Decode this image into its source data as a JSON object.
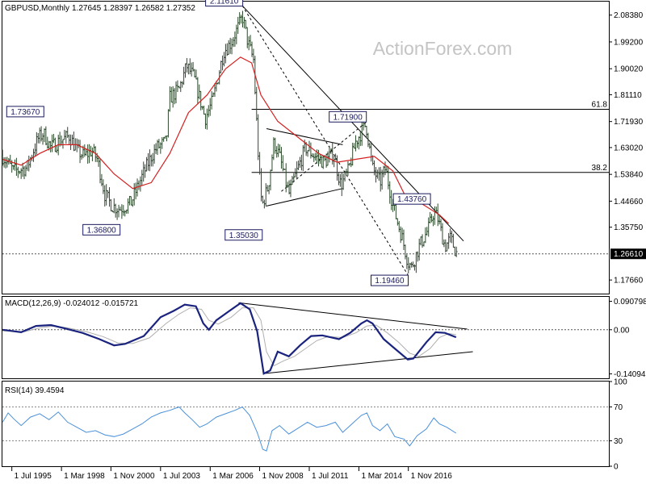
{
  "chart_data": [
    {
      "type": "candlestick",
      "symbol_header": "GBPUSD,Monthly",
      "ohlc_header": "1.27645 1.28397 1.26582 1.27352",
      "watermark": "ActionForex.com",
      "ylim": [
        1.13,
        2.13
      ],
      "y_ticks": [
        "2.08380",
        "1.99200",
        "1.90020",
        "1.81110",
        "1.71930",
        "1.63020",
        "1.53840",
        "1.44660",
        "1.35750",
        "1.17660"
      ],
      "current_price": "1.26610",
      "current_price_value": 1.2661,
      "x_ticks": [
        {
          "label": "1 Jul 1995",
          "t": 1995.5
        },
        {
          "label": "1 Mar 1998",
          "t": 1998.17
        },
        {
          "label": "1 Nov 2000",
          "t": 2000.83
        },
        {
          "label": "1 Jul 2003",
          "t": 2003.5
        },
        {
          "label": "1 Mar 2006",
          "t": 2006.17
        },
        {
          "label": "1 Nov 2008",
          "t": 2008.83
        },
        {
          "label": "1 Jul 2011",
          "t": 2011.5
        },
        {
          "label": "1 Mar 2014",
          "t": 2014.17
        },
        {
          "label": "1 Nov 2016",
          "t": 2016.83
        }
      ],
      "price_path": [
        [
          1995.0,
          1.6
        ],
        [
          1995.6,
          1.55
        ],
        [
          1996.3,
          1.56
        ],
        [
          1996.9,
          1.66
        ],
        [
          1997.2,
          1.68
        ],
        [
          1997.6,
          1.63
        ],
        [
          1998.0,
          1.65
        ],
        [
          1998.6,
          1.67
        ],
        [
          1999.0,
          1.62
        ],
        [
          1999.4,
          1.6
        ],
        [
          1999.8,
          1.62
        ],
        [
          2000.1,
          1.59
        ],
        [
          2000.5,
          1.47
        ],
        [
          2000.9,
          1.43
        ],
        [
          2001.3,
          1.42
        ],
        [
          2001.9,
          1.44
        ],
        [
          2002.5,
          1.53
        ],
        [
          2003.0,
          1.6
        ],
        [
          2003.3,
          1.63
        ],
        [
          2003.8,
          1.65
        ],
        [
          2004.0,
          1.8
        ],
        [
          2004.5,
          1.83
        ],
        [
          2004.9,
          1.91
        ],
        [
          2005.3,
          1.87
        ],
        [
          2005.9,
          1.73
        ],
        [
          2006.3,
          1.79
        ],
        [
          2006.9,
          1.96
        ],
        [
          2007.3,
          1.99
        ],
        [
          2007.8,
          2.06
        ],
        [
          2007.9,
          2.08
        ],
        [
          2008.2,
          1.99
        ],
        [
          2008.5,
          1.93
        ],
        [
          2008.8,
          1.55
        ],
        [
          2008.95,
          1.43
        ],
        [
          2009.3,
          1.5
        ],
        [
          2009.6,
          1.65
        ],
        [
          2009.9,
          1.6
        ],
        [
          2010.4,
          1.47
        ],
        [
          2010.9,
          1.56
        ],
        [
          2011.3,
          1.63
        ],
        [
          2011.8,
          1.6
        ],
        [
          2012.3,
          1.58
        ],
        [
          2012.8,
          1.61
        ],
        [
          2013.2,
          1.5
        ],
        [
          2013.6,
          1.55
        ],
        [
          2014.0,
          1.65
        ],
        [
          2014.55,
          1.71
        ],
        [
          2014.9,
          1.56
        ],
        [
          2015.3,
          1.51
        ],
        [
          2015.6,
          1.56
        ],
        [
          2016.0,
          1.43
        ],
        [
          2016.5,
          1.32
        ],
        [
          2016.8,
          1.24
        ],
        [
          2017.0,
          1.22
        ],
        [
          2017.4,
          1.29
        ],
        [
          2017.9,
          1.35
        ],
        [
          2018.2,
          1.41
        ],
        [
          2018.4,
          1.39
        ],
        [
          2018.8,
          1.29
        ],
        [
          2019.1,
          1.32
        ],
        [
          2019.4,
          1.27
        ]
      ],
      "sma_path": [
        [
          1995.0,
          1.59
        ],
        [
          1996.0,
          1.57
        ],
        [
          1997.0,
          1.61
        ],
        [
          1998.0,
          1.64
        ],
        [
          1999.0,
          1.64
        ],
        [
          2000.0,
          1.61
        ],
        [
          2001.0,
          1.54
        ],
        [
          2002.0,
          1.49
        ],
        [
          2003.0,
          1.51
        ],
        [
          2004.0,
          1.61
        ],
        [
          2005.0,
          1.75
        ],
        [
          2006.0,
          1.81
        ],
        [
          2007.0,
          1.9
        ],
        [
          2007.8,
          1.94
        ],
        [
          2008.4,
          1.92
        ],
        [
          2008.9,
          1.81
        ],
        [
          2009.8,
          1.72
        ],
        [
          2011.0,
          1.66
        ],
        [
          2012.0,
          1.61
        ],
        [
          2013.0,
          1.58
        ],
        [
          2014.0,
          1.59
        ],
        [
          2015.0,
          1.6
        ],
        [
          2016.0,
          1.55
        ],
        [
          2016.7,
          1.46
        ],
        [
          2017.5,
          1.44
        ],
        [
          2018.5,
          1.4
        ],
        [
          2019.0,
          1.37
        ]
      ],
      "trendlines": [
        {
          "from": [
            2007.9,
            2.1161
          ],
          "to": [
            2019.8,
            1.31
          ],
          "style": "solid"
        },
        {
          "from": [
            2007.9,
            2.1161
          ],
          "to": [
            2016.8,
            1.1946
          ],
          "style": "dashed"
        },
        {
          "from": [
            2010.0,
            1.48
          ],
          "to": [
            2014.6,
            1.719
          ],
          "style": "dashed"
        },
        {
          "from": [
            2009.2,
            1.695
          ],
          "to": [
            2013.3,
            1.64
          ],
          "style": "solid"
        },
        {
          "from": [
            2009.2,
            1.43
          ],
          "to": [
            2013.3,
            1.49
          ],
          "style": "solid"
        }
      ],
      "fib_levels": [
        {
          "label": "61.8",
          "value": 1.7612,
          "from": 2008.4
        },
        {
          "label": "38.2",
          "value": 1.545,
          "from": 2008.4
        }
      ],
      "price_labels": [
        {
          "text": "2.11610",
          "t": 2007.9,
          "price": 2.1161,
          "side": "left",
          "vpos": "top"
        },
        {
          "text": "1.73670",
          "t": 1997.2,
          "price": 1.7367,
          "side": "left",
          "vpos": "top"
        },
        {
          "text": "1.36800",
          "t": 2001.3,
          "price": 1.368,
          "side": "left",
          "vpos": "bottom"
        },
        {
          "text": "1.35030",
          "t": 2008.95,
          "price": 1.3503,
          "side": "left",
          "vpos": "bottom"
        },
        {
          "text": "1.71900",
          "t": 2014.55,
          "price": 1.719,
          "side": "left",
          "vpos": "top"
        },
        {
          "text": "1.43760",
          "t": 2016.0,
          "price": 1.4376,
          "side": "right",
          "vpos": "top"
        },
        {
          "text": "1.19460",
          "t": 2016.8,
          "price": 1.1946,
          "side": "left",
          "vpos": "bottom"
        }
      ]
    },
    {
      "type": "line",
      "title": "MACD(12,26,9) -0.024012 -0.015721",
      "ylim": [
        -0.155,
        0.105
      ],
      "y_ticks": [
        "0.090798",
        "0.00",
        "-0.14094"
      ],
      "zero_label": "0.00",
      "series": [
        {
          "values": [
            [
              1995.0,
              0.0
            ],
            [
              1996.0,
              -0.008
            ],
            [
              1996.8,
              0.012
            ],
            [
              1997.6,
              0.015
            ],
            [
              1998.3,
              0.005
            ],
            [
              1999.3,
              -0.01
            ],
            [
              2000.2,
              -0.03
            ],
            [
              2001.0,
              -0.05
            ],
            [
              2001.6,
              -0.045
            ],
            [
              2002.6,
              -0.02
            ],
            [
              2003.5,
              0.04
            ],
            [
              2004.2,
              0.06
            ],
            [
              2004.8,
              0.08
            ],
            [
              2005.4,
              0.075
            ],
            [
              2005.8,
              0.02
            ],
            [
              2006.1,
              0.0
            ],
            [
              2006.5,
              0.03
            ],
            [
              2007.2,
              0.06
            ],
            [
              2007.8,
              0.085
            ],
            [
              2008.3,
              0.065
            ],
            [
              2008.7,
              -0.005
            ],
            [
              2009.05,
              -0.14
            ],
            [
              2009.4,
              -0.13
            ],
            [
              2009.8,
              -0.07
            ],
            [
              2010.4,
              -0.085
            ],
            [
              2011.0,
              -0.05
            ],
            [
              2011.6,
              -0.02
            ],
            [
              2012.2,
              -0.018
            ],
            [
              2013.1,
              -0.03
            ],
            [
              2013.7,
              -0.01
            ],
            [
              2014.3,
              0.02
            ],
            [
              2014.6,
              0.03
            ],
            [
              2014.9,
              0.02
            ],
            [
              2015.5,
              -0.03
            ],
            [
              2016.1,
              -0.06
            ],
            [
              2016.8,
              -0.095
            ],
            [
              2017.1,
              -0.092
            ],
            [
              2017.8,
              -0.04
            ],
            [
              2018.3,
              -0.008
            ],
            [
              2018.8,
              -0.01
            ],
            [
              2019.4,
              -0.024
            ]
          ]
        },
        {
          "values": [
            [
              1995.0,
              -0.004
            ],
            [
              1996.2,
              -0.006
            ],
            [
              1997.0,
              0.006
            ],
            [
              1997.8,
              0.012
            ],
            [
              1998.5,
              0.006
            ],
            [
              1999.5,
              -0.006
            ],
            [
              2000.4,
              -0.022
            ],
            [
              2001.2,
              -0.042
            ],
            [
              2002.0,
              -0.044
            ],
            [
              2002.9,
              -0.026
            ],
            [
              2003.8,
              0.02
            ],
            [
              2004.5,
              0.05
            ],
            [
              2005.1,
              0.07
            ],
            [
              2005.7,
              0.065
            ],
            [
              2006.1,
              0.03
            ],
            [
              2006.6,
              0.018
            ],
            [
              2007.3,
              0.04
            ],
            [
              2007.9,
              0.07
            ],
            [
              2008.5,
              0.07
            ],
            [
              2008.9,
              0.03
            ],
            [
              2009.2,
              -0.07
            ],
            [
              2009.6,
              -0.115
            ],
            [
              2010.1,
              -0.1
            ],
            [
              2010.7,
              -0.085
            ],
            [
              2011.3,
              -0.06
            ],
            [
              2011.9,
              -0.035
            ],
            [
              2012.5,
              -0.022
            ],
            [
              2013.3,
              -0.025
            ],
            [
              2014.0,
              -0.01
            ],
            [
              2014.6,
              0.012
            ],
            [
              2015.1,
              0.015
            ],
            [
              2015.7,
              -0.01
            ],
            [
              2016.3,
              -0.04
            ],
            [
              2016.9,
              -0.075
            ],
            [
              2017.4,
              -0.085
            ],
            [
              2018.0,
              -0.06
            ],
            [
              2018.5,
              -0.025
            ],
            [
              2019.0,
              -0.012
            ],
            [
              2019.4,
              -0.016
            ]
          ]
        }
      ],
      "trendlines": [
        {
          "from": [
            2007.7,
            0.086
          ],
          "to": [
            2020.0,
            0.002
          ]
        },
        {
          "from": [
            2009.05,
            -0.14
          ],
          "to": [
            2020.3,
            -0.07
          ]
        }
      ]
    },
    {
      "type": "line",
      "title": "RSI(14) 39.4594",
      "ylim": [
        0,
        100
      ],
      "y_ticks": [
        "100",
        "70",
        "30",
        "0"
      ],
      "levels": [
        70,
        30
      ],
      "series": [
        {
          "values": [
            [
              1995.0,
              52
            ],
            [
              1995.3,
              63
            ],
            [
              1995.6,
              56
            ],
            [
              1996.0,
              48
            ],
            [
              1996.5,
              58
            ],
            [
              1997.0,
              62
            ],
            [
              1997.5,
              55
            ],
            [
              1998.0,
              64
            ],
            [
              1998.5,
              52
            ],
            [
              1999.0,
              46
            ],
            [
              1999.5,
              40
            ],
            [
              2000.0,
              42
            ],
            [
              2000.5,
              37
            ],
            [
              2001.0,
              35
            ],
            [
              2001.5,
              38
            ],
            [
              2002.0,
              44
            ],
            [
              2002.5,
              50
            ],
            [
              2003.0,
              58
            ],
            [
              2003.5,
              63
            ],
            [
              2004.0,
              66
            ],
            [
              2004.5,
              70
            ],
            [
              2004.8,
              63
            ],
            [
              2005.2,
              55
            ],
            [
              2005.6,
              46
            ],
            [
              2006.0,
              50
            ],
            [
              2006.5,
              58
            ],
            [
              2007.0,
              62
            ],
            [
              2007.5,
              66
            ],
            [
              2007.9,
              70
            ],
            [
              2008.3,
              60
            ],
            [
              2008.7,
              40
            ],
            [
              2009.0,
              20
            ],
            [
              2009.2,
              18
            ],
            [
              2009.5,
              42
            ],
            [
              2009.9,
              48
            ],
            [
              2010.4,
              38
            ],
            [
              2010.9,
              45
            ],
            [
              2011.4,
              52
            ],
            [
              2011.9,
              46
            ],
            [
              2012.4,
              48
            ],
            [
              2012.9,
              52
            ],
            [
              2013.3,
              40
            ],
            [
              2013.8,
              50
            ],
            [
              2014.3,
              60
            ],
            [
              2014.6,
              63
            ],
            [
              2014.9,
              48
            ],
            [
              2015.3,
              42
            ],
            [
              2015.7,
              50
            ],
            [
              2016.1,
              35
            ],
            [
              2016.6,
              32
            ],
            [
              2016.9,
              24
            ],
            [
              2017.3,
              36
            ],
            [
              2017.8,
              44
            ],
            [
              2018.2,
              57
            ],
            [
              2018.5,
              50
            ],
            [
              2018.9,
              46
            ],
            [
              2019.4,
              39
            ]
          ]
        }
      ]
    }
  ]
}
